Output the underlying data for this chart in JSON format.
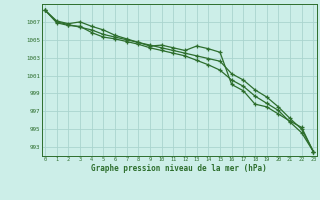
{
  "title": "Graphe pression niveau de la mer (hPa)",
  "background_color": "#cceee8",
  "grid_color": "#aad4ce",
  "line_color": "#2d6e2d",
  "x_ticks": [
    0,
    1,
    2,
    3,
    4,
    5,
    6,
    7,
    8,
    9,
    10,
    11,
    12,
    13,
    14,
    15,
    16,
    17,
    18,
    19,
    20,
    21,
    22,
    23
  ],
  "y_ticks": [
    993,
    995,
    997,
    999,
    1001,
    1003,
    1005,
    1007
  ],
  "ylim": [
    992.0,
    1009.0
  ],
  "xlim": [
    -0.3,
    23.3
  ],
  "line1": [
    1008.3,
    1007.1,
    1006.8,
    1007.0,
    1006.5,
    1006.1,
    1005.5,
    1005.1,
    1004.7,
    1004.3,
    1004.4,
    1004.1,
    1003.8,
    1004.3,
    1004.0,
    1003.6,
    1000.0,
    999.3,
    997.8,
    997.5,
    996.7,
    995.9,
    995.2,
    992.5
  ],
  "line2": [
    1008.3,
    1006.9,
    1006.6,
    1006.5,
    1005.8,
    1005.3,
    1005.1,
    1004.8,
    1004.5,
    1004.1,
    1003.8,
    1003.5,
    1003.2,
    1002.7,
    1002.2,
    1001.6,
    1000.5,
    999.8,
    998.7,
    997.9,
    997.1,
    995.8,
    994.6,
    992.5
  ],
  "line3": [
    1008.3,
    1007.0,
    1006.7,
    1006.4,
    1006.1,
    1005.6,
    1005.3,
    1005.0,
    1004.7,
    1004.4,
    1004.1,
    1003.8,
    1003.5,
    1003.2,
    1002.9,
    1002.6,
    1001.2,
    1000.5,
    999.4,
    998.6,
    997.5,
    996.2,
    995.0,
    992.5
  ]
}
